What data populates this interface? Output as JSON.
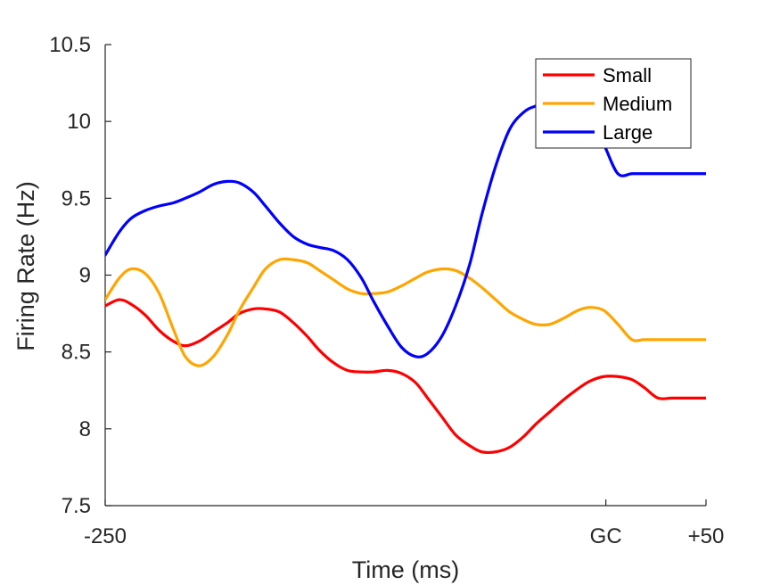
{
  "chart_data": {
    "type": "line",
    "xlabel": "Time (ms)",
    "ylabel": "Firing Rate (Hz)",
    "xlim": [
      -250,
      50
    ],
    "ylim": [
      7.5,
      10.5
    ],
    "x_ticks": [
      {
        "value": -250,
        "label": "-250"
      },
      {
        "value": 0,
        "label": "GC"
      },
      {
        "value": 50,
        "label": "+50"
      }
    ],
    "y_ticks": [
      {
        "value": 7.5,
        "label": "7.5"
      },
      {
        "value": 8,
        "label": "8"
      },
      {
        "value": 8.5,
        "label": "8.5"
      },
      {
        "value": 9,
        "label": "9"
      },
      {
        "value": 9.5,
        "label": "9.5"
      },
      {
        "value": 10,
        "label": "10"
      },
      {
        "value": 10.5,
        "label": "10.5"
      }
    ],
    "grid": false,
    "legend_position": "top-right",
    "series": [
      {
        "name": "Small",
        "color": "#ff0000",
        "x": [
          -250,
          -243,
          -237,
          -230,
          -223,
          -216,
          -210,
          -203,
          -196,
          -189,
          -183,
          -176,
          -170,
          -163,
          -156,
          -149,
          -143,
          -136,
          -129,
          -122,
          -116,
          -109,
          -102,
          -95,
          -89,
          -82,
          -75,
          -68,
          -62,
          -55,
          -48,
          -41,
          -35,
          -28,
          -21,
          -14,
          -8,
          -1,
          6,
          13,
          19,
          26,
          33,
          40,
          46,
          50
        ],
        "y": [
          8.8,
          8.84,
          8.81,
          8.74,
          8.64,
          8.57,
          8.54,
          8.57,
          8.63,
          8.69,
          8.75,
          8.78,
          8.78,
          8.76,
          8.69,
          8.6,
          8.51,
          8.43,
          8.38,
          8.37,
          8.37,
          8.38,
          8.36,
          8.3,
          8.2,
          8.08,
          7.96,
          7.89,
          7.85,
          7.85,
          7.88,
          7.95,
          8.03,
          8.11,
          8.19,
          8.26,
          8.31,
          8.34,
          8.34,
          8.32,
          8.27,
          8.2,
          8.2,
          8.2,
          8.2,
          8.2
        ]
      },
      {
        "name": "Medium",
        "color": "#ffa500",
        "x": [
          -250,
          -243,
          -237,
          -230,
          -223,
          -216,
          -210,
          -203,
          -196,
          -189,
          -183,
          -176,
          -170,
          -163,
          -156,
          -149,
          -143,
          -136,
          -129,
          -122,
          -116,
          -109,
          -102,
          -95,
          -89,
          -82,
          -75,
          -68,
          -62,
          -55,
          -48,
          -41,
          -35,
          -28,
          -21,
          -14,
          -8,
          -1,
          6,
          13,
          19,
          26,
          33,
          40,
          46,
          50
        ],
        "y": [
          8.84,
          8.98,
          9.04,
          9.01,
          8.88,
          8.65,
          8.47,
          8.41,
          8.47,
          8.61,
          8.77,
          8.92,
          9.04,
          9.1,
          9.1,
          9.08,
          9.03,
          8.97,
          8.91,
          8.88,
          8.88,
          8.89,
          8.93,
          8.98,
          9.02,
          9.04,
          9.03,
          8.98,
          8.92,
          8.84,
          8.76,
          8.71,
          8.68,
          8.68,
          8.72,
          8.77,
          8.79,
          8.77,
          8.68,
          8.58,
          8.58,
          8.58,
          8.58,
          8.58,
          8.58,
          8.58
        ]
      },
      {
        "name": "Large",
        "color": "#0000ff",
        "x": [
          -250,
          -243,
          -237,
          -230,
          -223,
          -216,
          -210,
          -203,
          -196,
          -189,
          -183,
          -176,
          -170,
          -163,
          -156,
          -149,
          -143,
          -136,
          -129,
          -122,
          -116,
          -109,
          -102,
          -95,
          -89,
          -82,
          -75,
          -68,
          -62,
          -55,
          -48,
          -41,
          -35,
          -28,
          -21,
          -14,
          -8,
          -1,
          6,
          13,
          19,
          26,
          33,
          40,
          46,
          50
        ],
        "y": [
          9.13,
          9.28,
          9.37,
          9.42,
          9.45,
          9.47,
          9.5,
          9.54,
          9.59,
          9.61,
          9.6,
          9.54,
          9.45,
          9.34,
          9.25,
          9.2,
          9.18,
          9.16,
          9.1,
          8.98,
          8.83,
          8.67,
          8.53,
          8.47,
          8.49,
          8.6,
          8.8,
          9.07,
          9.39,
          9.71,
          9.95,
          10.06,
          10.1,
          10.12,
          10.12,
          10.09,
          10.02,
          9.85,
          9.66,
          9.66,
          9.66,
          9.66,
          9.66,
          9.66,
          9.66,
          9.66
        ]
      }
    ]
  }
}
